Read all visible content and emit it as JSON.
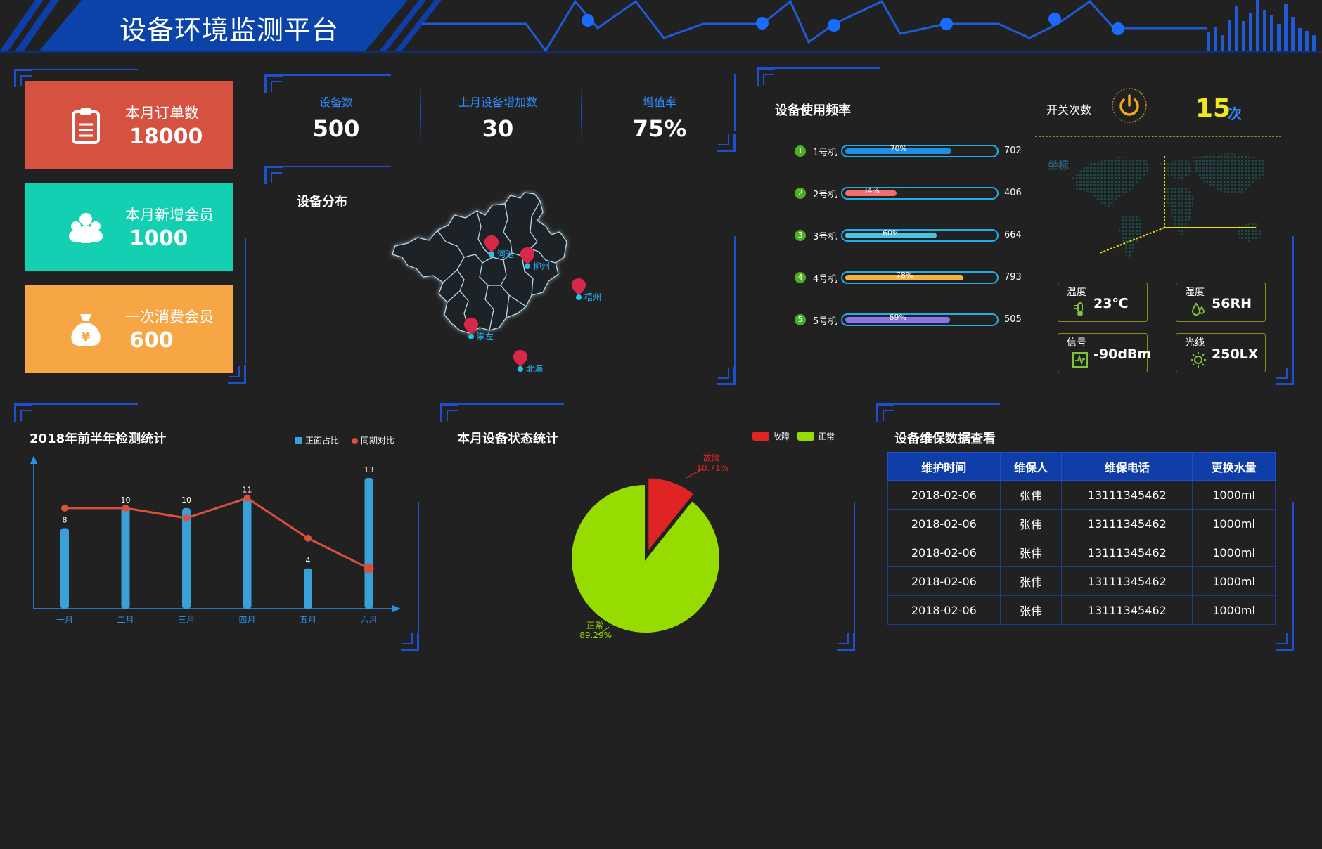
{
  "header": {
    "title": "设备环境监测平台"
  },
  "kpi_cards": [
    {
      "label": "本月订单数",
      "value": "18000",
      "color": "#d55140",
      "icon": "clipboard-icon"
    },
    {
      "label": "本月新增会员",
      "value": "1000",
      "color": "#13d0b2",
      "icon": "members-icon"
    },
    {
      "label": "一次消费会员",
      "value": "600",
      "color": "#f6a645",
      "icon": "money-bag-icon"
    }
  ],
  "stats": [
    {
      "label": "设备数",
      "value": "500"
    },
    {
      "label": "上月设备增加数",
      "value": "30"
    },
    {
      "label": "增值率",
      "value": "75%"
    }
  ],
  "distribution": {
    "title": "设备分布",
    "cities": [
      "河池",
      "柳州",
      "梧州",
      "崇左",
      "北海"
    ]
  },
  "usage": {
    "title": "设备使用频率",
    "rows": [
      {
        "num": "1",
        "name": "1号机",
        "pct": 70,
        "pct_label": "70%",
        "value": "702",
        "color": "#1f8fe6"
      },
      {
        "num": "2",
        "name": "2号机",
        "pct": 34,
        "pct_label": "34%",
        "value": "406",
        "color": "#f26d6d"
      },
      {
        "num": "3",
        "name": "3号机",
        "pct": 60,
        "pct_label": "60%",
        "value": "664",
        "color": "#4ec2e0"
      },
      {
        "num": "4",
        "name": "4号机",
        "pct": 78,
        "pct_label": "78%",
        "value": "793",
        "color": "#f6b241"
      },
      {
        "num": "5",
        "name": "5号机",
        "pct": 69,
        "pct_label": "69%",
        "value": "505",
        "color": "#8b74e8"
      }
    ]
  },
  "switch": {
    "label": "开关次数",
    "value": "15",
    "unit": "次"
  },
  "coord_label": "坐标",
  "sensors": [
    {
      "label": "温度",
      "value": "23℃",
      "icon": "thermometer-icon"
    },
    {
      "label": "湿度",
      "value": "56RH",
      "icon": "droplets-icon"
    },
    {
      "label": "信号",
      "value": "-90dBm",
      "icon": "signal-icon"
    },
    {
      "label": "光线",
      "value": "250LX",
      "icon": "sun-icon"
    }
  ],
  "chart_data": [
    {
      "type": "bar",
      "title": "2018年前半年检测统计",
      "categories": [
        "一月",
        "二月",
        "三月",
        "四月",
        "五月",
        "六月"
      ],
      "series": [
        {
          "name": "正面占比",
          "type": "bar",
          "values": [
            8,
            10,
            10,
            11,
            4,
            13
          ],
          "color": "#3aa0d8"
        },
        {
          "name": "同期对比",
          "type": "line",
          "values": [
            10,
            10,
            9,
            11,
            7,
            4
          ],
          "color": "#d9503f"
        }
      ],
      "ylim": [
        0,
        13
      ]
    },
    {
      "type": "pie",
      "title": "本月设备状态统计",
      "series": [
        {
          "name": "故障",
          "value": 10.71,
          "label": "10.71%",
          "color": "#e02424"
        },
        {
          "name": "正常",
          "value": 89.29,
          "label": "89.29%",
          "color": "#96dc00"
        }
      ],
      "legend_position": "top-right"
    }
  ],
  "maintenance": {
    "title": "设备维保数据查看",
    "columns": [
      "维护时间",
      "维保人",
      "维保电话",
      "更换水量"
    ],
    "rows": [
      [
        "2018-02-06",
        "张伟",
        "13111345462",
        "1000ml"
      ],
      [
        "2018-02-06",
        "张伟",
        "13111345462",
        "1000ml"
      ],
      [
        "2018-02-06",
        "张伟",
        "13111345462",
        "1000ml"
      ],
      [
        "2018-02-06",
        "张伟",
        "13111345462",
        "1000ml"
      ],
      [
        "2018-02-06",
        "张伟",
        "13111345462",
        "1000ml"
      ]
    ]
  }
}
